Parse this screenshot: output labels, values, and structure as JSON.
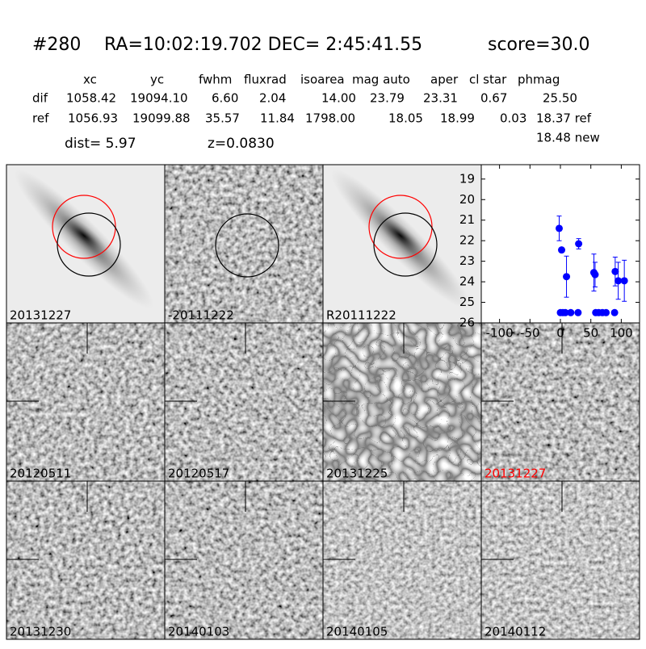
{
  "header": {
    "id": "#280",
    "coords": "RA=10:02:19.702 DEC= 2:45:41.55",
    "score": "score=30.0"
  },
  "table": {
    "columns": [
      "xc",
      "yc",
      "fwhm",
      "fluxrad",
      "isoarea",
      "mag auto",
      "aper",
      "cl star",
      "phmag"
    ],
    "rows": [
      [
        "dif",
        "1058.42",
        "19094.10",
        "6.60",
        "2.04",
        "14.00",
        "23.79",
        "23.31",
        "0.67",
        "25.50"
      ],
      [
        "ref",
        "1056.93",
        "19099.88",
        "35.57",
        "11.84",
        "1798.00",
        "18.05",
        "18.99",
        "0.03",
        "18.37 ref"
      ]
    ],
    "extra": "18.48 new"
  },
  "dist": "dist=  5.97",
  "z": "z=0.0830",
  "panels": [
    "20131227",
    "-20111222",
    "R20111222",
    "20120511",
    "20120517",
    "20131225",
    "20131227",
    "20131230",
    "20140103",
    "20140105",
    "20140112"
  ],
  "chart_data": {
    "type": "scatter",
    "series": [
      {
        "color": "#0000ff",
        "x": [
          -2,
          2,
          10,
          30,
          55,
          57,
          90,
          95,
          105
        ],
        "values": [
          21.4,
          22.45,
          23.75,
          22.15,
          23.55,
          23.65,
          23.5,
          23.95,
          23.95
        ],
        "errors": [
          0.6,
          0.1,
          1.0,
          0.25,
          0.9,
          0.6,
          0.7,
          0.9,
          1.0
        ]
      },
      {
        "color": "#0000ff",
        "x": [
          0,
          4,
          8,
          17,
          29,
          58,
          63,
          69,
          75,
          89
        ],
        "values": [
          25.5,
          25.5,
          25.5,
          25.5,
          25.5,
          25.5,
          25.5,
          25.5,
          25.5,
          25.5
        ]
      }
    ],
    "xlim": [
      -130,
      130
    ],
    "xticks": [
      -100,
      -50,
      0,
      50,
      100
    ],
    "ylim": [
      26,
      18.3
    ],
    "yticks": [
      19,
      20,
      21,
      22,
      23,
      24,
      25,
      26
    ]
  }
}
